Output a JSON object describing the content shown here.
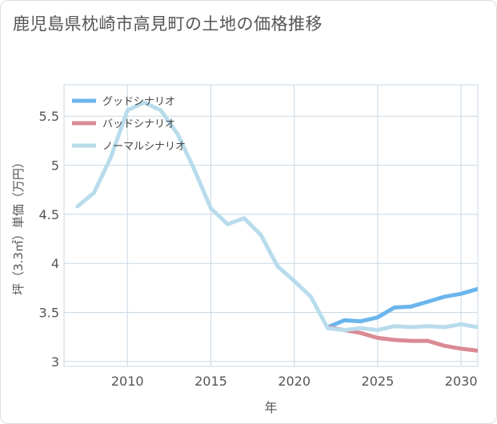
{
  "title": "鹿児島県枕崎市高見町の土地の価格推移",
  "chart_data": {
    "type": "line",
    "xlabel": "年",
    "ylabel": "坪（3.3㎡）単価（万円）",
    "xlim": [
      2006.2,
      2031
    ],
    "ylim": [
      2.95,
      5.82
    ],
    "xticks": [
      "2010",
      "2015",
      "2020",
      "2025",
      "2030"
    ],
    "yticks": [
      "3",
      "3.5",
      "4",
      "4.5",
      "5",
      "5.5"
    ],
    "legend_position": "top-left",
    "series": [
      {
        "name": "グッドシナリオ",
        "color": "#6bb5ec",
        "x": [
          2022,
          2023,
          2024,
          2025,
          2026,
          2027,
          2028,
          2029,
          2030,
          2031
        ],
        "values": [
          3.35,
          3.42,
          3.41,
          3.45,
          3.55,
          3.56,
          3.61,
          3.66,
          3.69,
          3.74
        ]
      },
      {
        "name": "バッドシナリオ",
        "color": "#da8a93",
        "x": [
          2022,
          2023,
          2024,
          2025,
          2026,
          2027,
          2028,
          2029,
          2030,
          2031
        ],
        "values": [
          3.35,
          3.32,
          3.29,
          3.24,
          3.22,
          3.21,
          3.21,
          3.16,
          3.13,
          3.11
        ]
      },
      {
        "name": "ノーマルシナリオ",
        "color": "#b8dcec",
        "x": [
          2007,
          2008,
          2009,
          2010,
          2011,
          2012,
          2013,
          2014,
          2015,
          2016,
          2017,
          2018,
          2019,
          2020,
          2021,
          2022,
          2023,
          2024,
          2025,
          2026,
          2027,
          2028,
          2029,
          2030,
          2031
        ],
        "values": [
          4.58,
          4.72,
          5.08,
          5.56,
          5.64,
          5.56,
          5.32,
          4.96,
          4.56,
          4.4,
          4.46,
          4.29,
          3.97,
          3.82,
          3.66,
          3.34,
          3.32,
          3.34,
          3.32,
          3.36,
          3.35,
          3.36,
          3.35,
          3.38,
          3.35
        ]
      }
    ]
  }
}
